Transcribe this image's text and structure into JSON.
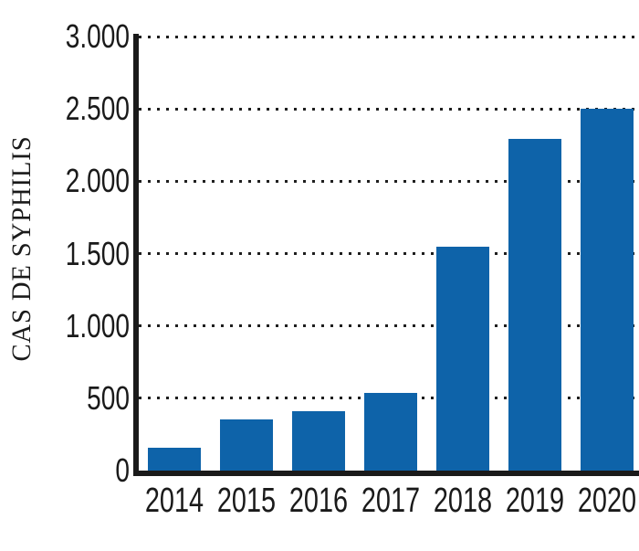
{
  "chart_data": {
    "type": "bar",
    "title": "",
    "xlabel": "",
    "ylabel": "CAS DE SYPHILIS",
    "categories": [
      "2014",
      "2015",
      "2016",
      "2017",
      "2018",
      "2019",
      "2020"
    ],
    "values": [
      155,
      355,
      410,
      540,
      1550,
      2290,
      2500
    ],
    "ylim": [
      0,
      3000
    ],
    "yticks": [
      0,
      500,
      1000,
      1500,
      2000,
      2500,
      3000
    ],
    "ytick_labels": [
      "0",
      "500",
      "1.000",
      "1.500",
      "2.000",
      "2.500",
      "3.000"
    ],
    "grid": "horizontal-dotted",
    "legend": "none",
    "bar_color": "#0e63a9",
    "axis_color": "#1a1a1a",
    "background_color": "#ffffff"
  }
}
